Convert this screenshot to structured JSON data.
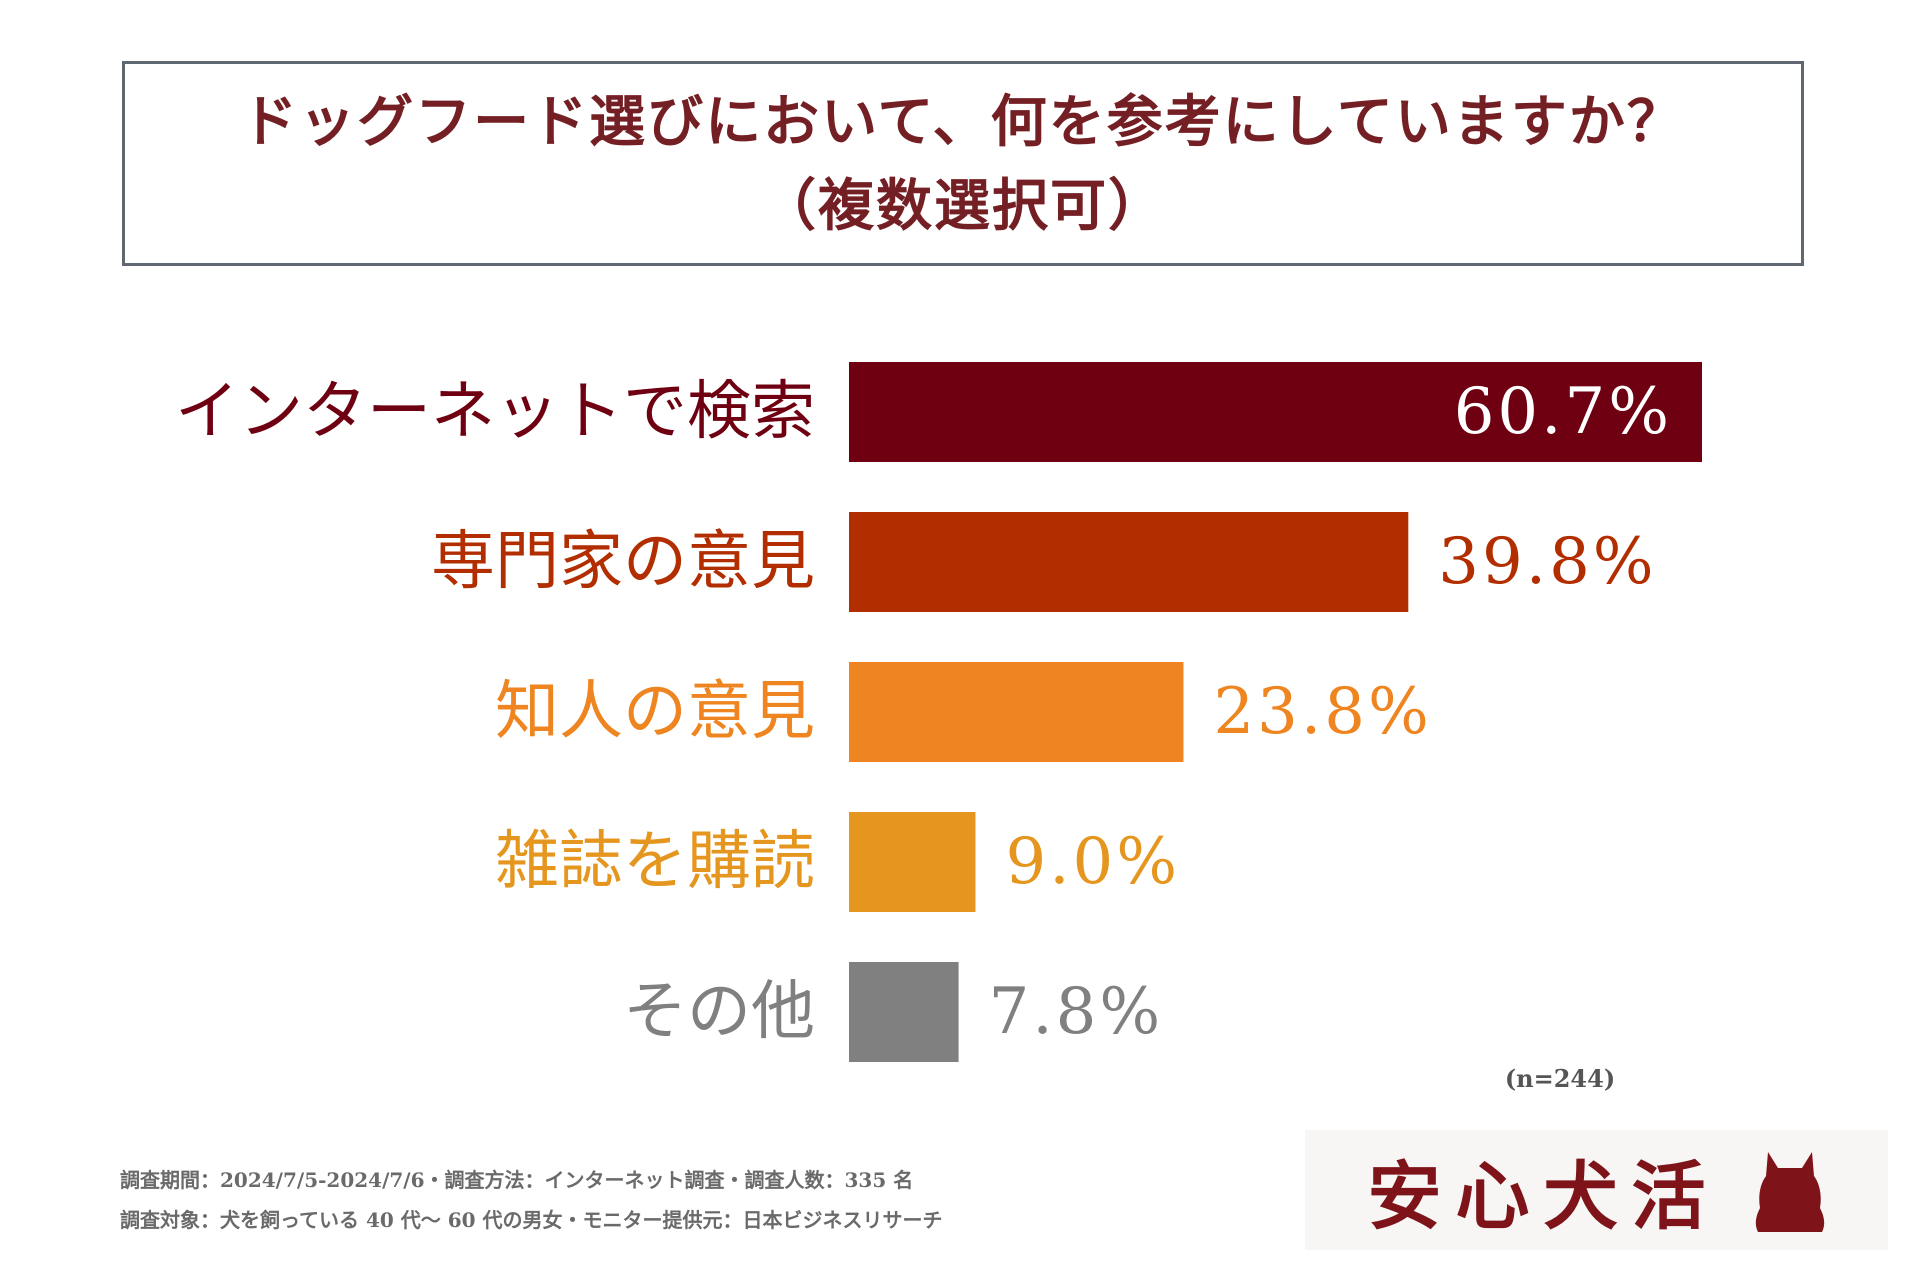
{
  "title": {
    "line1": "ドッグフード選びにおいて、何を参考にしていますか？",
    "line2": "（複数選択可）"
  },
  "chart_data": {
    "type": "bar",
    "orientation": "horizontal",
    "categories": [
      "インターネットで検索",
      "専門家の意見",
      "知人の意見",
      "雑誌を購読",
      "その他"
    ],
    "values": [
      60.7,
      39.8,
      23.8,
      9.0,
      7.8
    ],
    "value_labels": [
      "60.7%",
      "39.8%",
      "23.8%",
      "9.0%",
      "7.8%"
    ],
    "colors": [
      "#6e0011",
      "#b22e00",
      "#ee8520",
      "#e5961f",
      "#808080"
    ],
    "label_colors": [
      "#6e0011",
      "#b22e00",
      "#ee8520",
      "#e5961f",
      "#808080"
    ],
    "unit": "%",
    "xlim": [
      0,
      60.7
    ],
    "legend": "none",
    "grid": false
  },
  "sample_size": "(n=244)",
  "footnotes": {
    "line1": "調査期間：2024/7/5-2024/7/6・調査方法：インターネット調査・調査人数：335 名",
    "line2": "調査対象：犬を飼っている 40 代～ 60 代の男女・モニター提供元：日本ビジネスリサーチ"
  },
  "logo": {
    "text": "安心犬活",
    "icon": "dog-icon",
    "color": "#7e1419"
  }
}
